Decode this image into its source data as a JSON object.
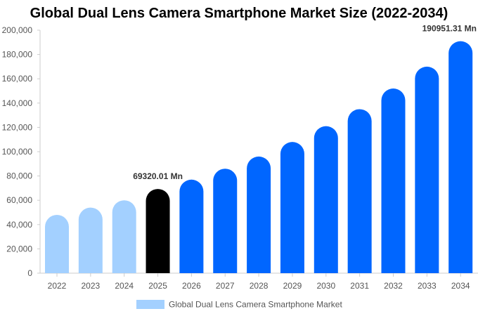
{
  "chart_data": {
    "type": "bar",
    "title": "Global Dual Lens Camera Smartphone Market Size (2022-2034)",
    "categories": [
      "2022",
      "2023",
      "2024",
      "2025",
      "2026",
      "2027",
      "2028",
      "2029",
      "2030",
      "2031",
      "2032",
      "2033",
      "2034"
    ],
    "series": [
      {
        "name": "Global Dual Lens Camera Smartphone Market",
        "values": [
          48000,
          54000,
          60000,
          69320.01,
          77000,
          86000,
          96000,
          108000,
          121000,
          135000,
          152000,
          170000,
          190951.31
        ]
      }
    ],
    "bar_colors": [
      "#a3d0ff",
      "#a3d0ff",
      "#a3d0ff",
      "#000000",
      "#0066ff",
      "#0066ff",
      "#0066ff",
      "#0066ff",
      "#0066ff",
      "#0066ff",
      "#0066ff",
      "#0066ff",
      "#0066ff"
    ],
    "data_labels": [
      {
        "category": "2025",
        "text": "69320.01 Mn"
      },
      {
        "category": "2034",
        "text": "190951.31 Mn"
      }
    ],
    "y_ticks": [
      "0",
      "20,000",
      "40,000",
      "60,000",
      "80,000",
      "100,000",
      "120,000",
      "140,000",
      "160,000",
      "180,000",
      "200,000"
    ],
    "ylim": [
      0,
      200000
    ],
    "grid": false,
    "legend": {
      "position": "bottom",
      "label": "Global Dual Lens Camera Smartphone Market",
      "color": "#a3d0ff"
    },
    "axis_color": "#cccccc"
  }
}
